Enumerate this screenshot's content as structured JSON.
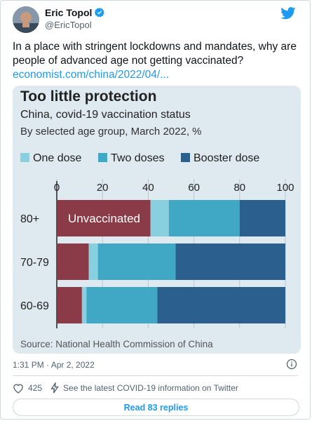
{
  "author": {
    "name": "Eric Topol",
    "handle": "@EricTopol"
  },
  "tweet": {
    "text": "In a place with stringent lockdowns and mandates, why are people of advanced age not getting vaccinated?",
    "link": "economist.com/china/2022/04/..."
  },
  "chart_data": {
    "type": "bar",
    "orientation": "horizontal",
    "stacked": true,
    "title": "Too little protection",
    "subtitle": "China, covid-19 vaccination status",
    "subtitle2": "By selected age group, March 2022, %",
    "source": "Source: National Health Commission of China",
    "categories": [
      "80+",
      "70-79",
      "60-69"
    ],
    "xlim": [
      0,
      100
    ],
    "xticks": [
      "0",
      "20",
      "40",
      "60",
      "80",
      "100"
    ],
    "tick_values": [
      0,
      20,
      40,
      60,
      80,
      100
    ],
    "legend_placement": "top",
    "series": [
      {
        "name": "Unvaccinated",
        "key": "unvaccinated",
        "values": [
          41,
          14,
          11
        ],
        "color": "#8b3a47",
        "label_on_bar": true
      },
      {
        "name": "One dose",
        "key": "one_dose",
        "values": [
          8,
          4,
          2
        ],
        "color": "#88cfe0"
      },
      {
        "name": "Two doses",
        "key": "two_doses",
        "values": [
          31,
          34,
          31
        ],
        "color": "#40a8c4"
      },
      {
        "name": "Booster dose",
        "key": "booster",
        "values": [
          20,
          48,
          56
        ],
        "color": "#2a5f8e"
      }
    ]
  },
  "meta": {
    "timestamp": "1:31 PM · Apr 2, 2022"
  },
  "actions": {
    "likes": "425",
    "covid_info": "See the latest COVID-19 information on Twitter"
  },
  "replies_button": "Read 83 replies",
  "colors": {
    "accent": "#1d9bf0",
    "chart_bg": "#dfe9f0"
  }
}
